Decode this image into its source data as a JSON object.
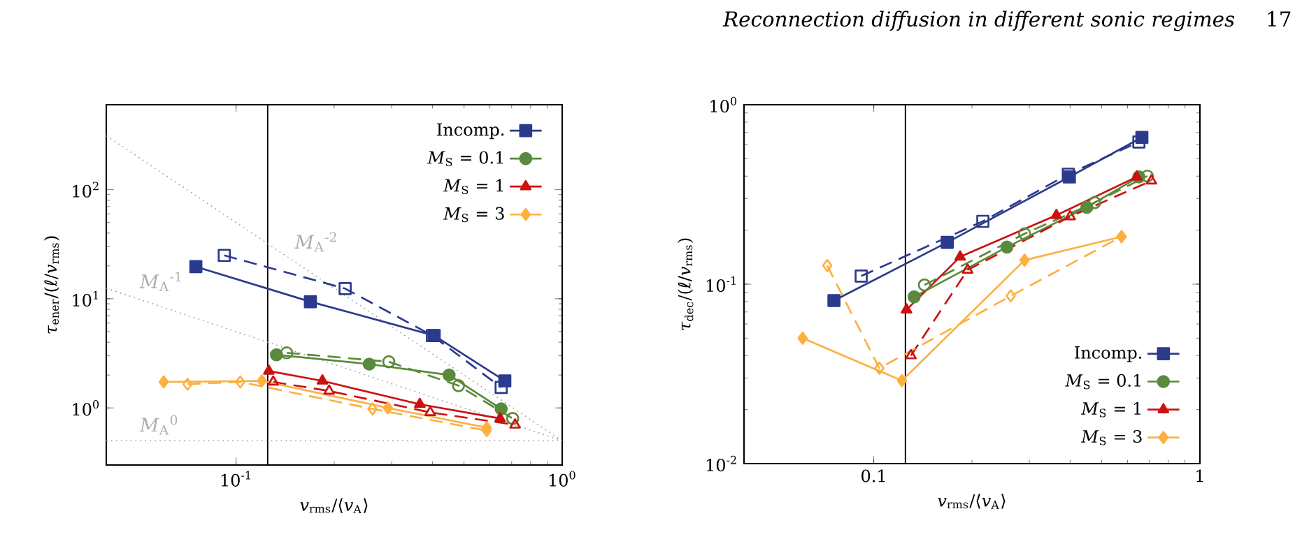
{
  "chart_data": [
    {
      "type": "line",
      "xlabel": "*v*$_{rms}$/⟨*v*$_{A}$⟩",
      "ylabel": "*τ*$_{ener}$/(*ℓ*/*v*$_{rms}$)",
      "log": "xy",
      "legend": "top right",
      "xlim": [
        0.04,
        1
      ],
      "ylim": [
        0.3,
        600
      ],
      "xticks": [
        {
          "value": 0.1,
          "label": "10$^{-1}$"
        },
        {
          "value": 1,
          "label": "10$^{0}$"
        }
      ],
      "yticks": [
        {
          "value": 1,
          "label": "10$^{0}$"
        },
        {
          "value": 10,
          "label": "10$^{1}$"
        },
        {
          "value": 100,
          "label": "10$^{2}$"
        }
      ],
      "ref_lines": [
        {
          "axis": "x",
          "value": 0.125,
          "color": "#000000"
        }
      ],
      "annotations": [
        "Reconnection diffusion in different sonic regimes",
        "17"
      ],
      "series": [
        {
          "type": "line",
          "name": "*M*$_{A}$$^{-2}$",
          "color": "#999999",
          "line_style": "dotted",
          "marker": "none",
          "x": [
            0.04,
            1
          ],
          "values": [
            312,
            0.5
          ]
        },
        {
          "type": "line",
          "name": "*M*$_{A}$$^{-1}$",
          "color": "#999999",
          "line_style": "dotted",
          "marker": "none",
          "x": [
            0.04,
            1
          ],
          "values": [
            12.5,
            0.5
          ]
        },
        {
          "type": "line",
          "name": "*M*$_{A}$$^{0}$",
          "color": "#999999",
          "line_style": "dotted",
          "marker": "none",
          "x": [
            0.04,
            1
          ],
          "values": [
            0.5,
            0.5
          ]
        },
        {
          "name": "Incomp.",
          "color": "#2b3a8c",
          "marker": "square",
          "line_style": "solid",
          "x": [
            0.0753,
            0.169,
            0.405,
            0.667
          ],
          "values": [
            19.7,
            9.4,
            4.6,
            1.77
          ]
        },
        {
          "color": "#2b3a8c",
          "marker": "square",
          "line_style": "dashed",
          "x": [
            0.092,
            0.216,
            0.4,
            0.65
          ],
          "values": [
            25,
            12.4,
            4.6,
            1.54
          ]
        },
        {
          "name": "*M*$_{S}$ = 0.1",
          "color": "#5a8a3c",
          "marker": "circle",
          "line_style": "solid",
          "x": [
            0.133,
            0.256,
            0.45,
            0.65
          ],
          "values": [
            3.07,
            2.52,
            2.0,
            0.98
          ]
        },
        {
          "color": "#5a8a3c",
          "marker": "circle",
          "line_style": "dashed",
          "x": [
            0.143,
            0.294,
            0.481,
            0.705
          ],
          "values": [
            3.2,
            2.65,
            1.6,
            0.8
          ]
        },
        {
          "name": "*M*$_{S}$ = 1",
          "color": "#cc1111",
          "marker": "triangle",
          "line_style": "solid",
          "x": [
            0.126,
            0.184,
            0.366,
            0.645
          ],
          "values": [
            2.18,
            1.77,
            1.08,
            0.8
          ]
        },
        {
          "color": "#cc1111",
          "marker": "triangle",
          "line_style": "dashed",
          "x": [
            0.13,
            0.193,
            0.394,
            0.717
          ],
          "values": [
            1.73,
            1.43,
            0.91,
            0.7
          ]
        },
        {
          "name": "*M*$_{S}$ = 3",
          "color": "#fbb040",
          "marker": "diamond",
          "line_style": "solid",
          "x": [
            0.06,
            0.12,
            0.292,
            0.587
          ],
          "values": [
            1.73,
            1.77,
            1.0,
            0.66
          ]
        },
        {
          "color": "#fbb040",
          "marker": "diamond",
          "line_style": "dashed",
          "x": [
            0.071,
            0.103,
            0.262,
            0.587
          ],
          "values": [
            1.65,
            1.73,
            0.98,
            0.62
          ]
        }
      ]
    },
    {
      "type": "line",
      "xlabel": "*v*$_{rms}$/⟨*v*$_{A}$⟩",
      "ylabel": "*τ*$_{dec}$/(*ℓ*/*v*$_{rms}$)",
      "log": "xy",
      "legend": "bottom right",
      "xlim": [
        0.04,
        1
      ],
      "ylim": [
        0.01,
        1
      ],
      "xticks": [
        0.1,
        1
      ],
      "yticks": [
        {
          "value": 0.01,
          "label": "10$^{-2}$"
        },
        {
          "value": 0.1,
          "label": "10$^{-1}$"
        },
        {
          "value": 1,
          "label": "10$^{0}$"
        }
      ],
      "ref_lines": [
        {
          "axis": "x",
          "value": 0.125,
          "color": "#000000"
        }
      ],
      "series": [
        {
          "name": "Incomp.",
          "color": "#2b3a8c",
          "marker": "square",
          "line_style": "solid",
          "x": [
            0.0755,
            0.168,
            0.398,
            0.664
          ],
          "values": [
            0.081,
            0.171,
            0.396,
            0.658
          ]
        },
        {
          "color": "#2b3a8c",
          "marker": "square",
          "line_style": "dashed",
          "x": [
            0.0915,
            0.216,
            0.395,
            0.65
          ],
          "values": [
            0.111,
            0.224,
            0.41,
            0.62
          ]
        },
        {
          "name": "*M*$_{S}$ = 0.1",
          "color": "#5a8a3c",
          "marker": "circle",
          "line_style": "solid",
          "x": [
            0.133,
            0.256,
            0.45,
            0.65
          ],
          "values": [
            0.085,
            0.161,
            0.268,
            0.396
          ]
        },
        {
          "color": "#5a8a3c",
          "marker": "circle",
          "line_style": "dashed",
          "x": [
            0.143,
            0.29,
            0.476,
            0.69
          ],
          "values": [
            0.099,
            0.191,
            0.285,
            0.4
          ]
        },
        {
          "name": "*M*$_{S}$ = 1",
          "color": "#cc1111",
          "marker": "triangle",
          "line_style": "solid",
          "x": [
            0.126,
            0.184,
            0.363,
            0.64
          ],
          "values": [
            0.072,
            0.142,
            0.242,
            0.396
          ]
        },
        {
          "color": "#cc1111",
          "marker": "triangle",
          "line_style": "dashed",
          "x": [
            0.13,
            0.194,
            0.4,
            0.71
          ],
          "values": [
            0.04,
            0.12,
            0.238,
            0.377
          ]
        },
        {
          "name": "*M*$_{S}$ = 3",
          "color": "#fbb040",
          "marker": "diamond",
          "line_style": "solid",
          "x": [
            0.0605,
            0.122,
            0.29,
            0.575
          ],
          "values": [
            0.05,
            0.029,
            0.136,
            0.184
          ]
        },
        {
          "color": "#fbb040",
          "marker": "diamond",
          "line_style": "dashed",
          "x": [
            0.072,
            0.104,
            0.263,
            0.575
          ],
          "values": [
            0.127,
            0.034,
            0.086,
            0.184
          ]
        }
      ]
    }
  ]
}
